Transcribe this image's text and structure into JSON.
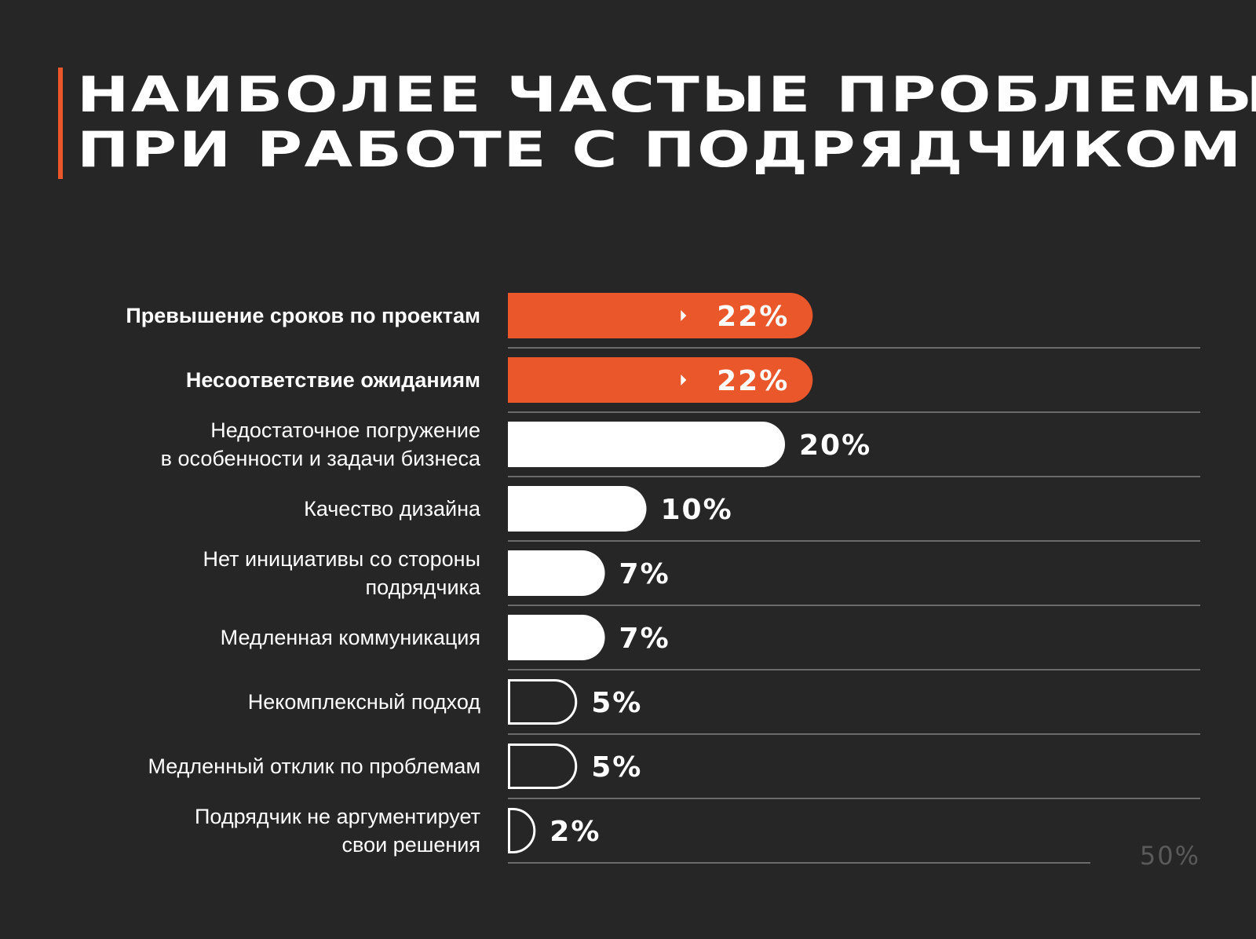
{
  "title": {
    "line1": "НАИБОЛЕЕ ЧАСТЫЕ ПРОБЛЕМЫ",
    "line2": "ПРИ РАБОТЕ С ПОДРЯДЧИКОМ"
  },
  "colors": {
    "background": "#262626",
    "accent": "#e9572b",
    "bar_white": "#ffffff",
    "gridline": "#6b6b6b",
    "reference_label": "#5a5a5a"
  },
  "chart_data": {
    "type": "bar",
    "orientation": "horizontal",
    "categories": [
      [
        "Превышение сроков по проектам"
      ],
      [
        "Несоответствие ожиданиям"
      ],
      [
        "Недостаточное погружение",
        "в особенности и задачи бизнеса"
      ],
      [
        "Качество дизайна"
      ],
      [
        "Нет инициативы со стороны",
        "подрядчика"
      ],
      [
        "Медленная коммуникация"
      ],
      [
        "Некомплексный подход"
      ],
      [
        "Медленный отклик по проблемам"
      ],
      [
        "Подрядчик не аргументирует",
        "свои решения"
      ]
    ],
    "values": [
      22,
      22,
      20,
      10,
      7,
      7,
      5,
      5,
      2
    ],
    "value_labels": [
      "22%",
      "22%",
      "20%",
      "10%",
      "7%",
      "7%",
      "5%",
      "5%",
      "2%"
    ],
    "highlighted": [
      true,
      true,
      false,
      false,
      false,
      false,
      false,
      false,
      false
    ],
    "bar_style": [
      "filled-accent",
      "filled-accent",
      "filled",
      "filled",
      "filled",
      "filled",
      "outline",
      "outline",
      "outline"
    ],
    "xlim": [
      0,
      50
    ],
    "reference_label": "50%",
    "grid": true
  }
}
